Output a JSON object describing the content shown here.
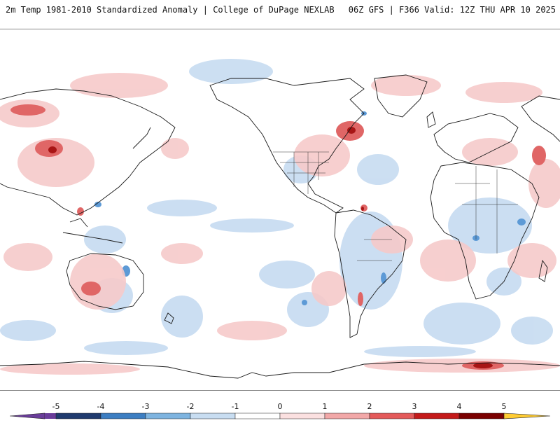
{
  "header": {
    "title_left": "2m Temp 1981-2010 Standardized Anomaly | College of DuPage NEXLAB",
    "title_right": "06Z GFS | F366 Valid: 12Z THU APR 10 2025"
  },
  "colorbar": {
    "ticks": [
      "-5",
      "-4",
      "-3",
      "-2",
      "-1",
      "0",
      "1",
      "2",
      "3",
      "4",
      "5"
    ],
    "colors": [
      "#6a3d9a",
      "#1f3a6e",
      "#3c7ec2",
      "#7eb4e0",
      "#c8ddf1",
      "#ffffff",
      "#fbe0e0",
      "#f2a8a8",
      "#e45a5a",
      "#c41a1a",
      "#7a0000",
      "#ffcc33"
    ]
  },
  "map": {
    "projection": "global equirectangular",
    "cold_color": "#a9c9ec",
    "warm_color": "#f3b8b8",
    "coast_color": "#1a1a1a"
  }
}
